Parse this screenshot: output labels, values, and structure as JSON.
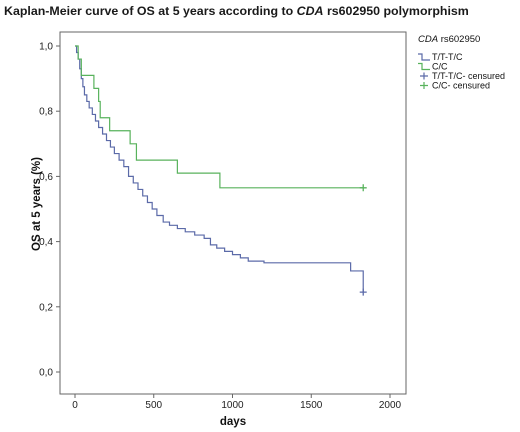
{
  "chart_data": {
    "type": "line",
    "title_prefix": "Kaplan-Meier curve of OS at 5 years according to ",
    "title_gene": "CDA",
    "title_suffix": " rs602950 polymorphism",
    "xlabel": "days",
    "ylabel": "OS at 5 years (%)",
    "xlim": [
      0,
      2000
    ],
    "ylim": [
      0,
      1
    ],
    "x_ticks": [
      "0",
      "500",
      "1000",
      "1500",
      "2000"
    ],
    "y_ticks": [
      "0,0",
      "0,2",
      "0,4",
      "0,6",
      "0,8",
      "1,0"
    ],
    "legend_title_gene": "CDA",
    "legend_title_rest": " rs602950",
    "legend_position": "right",
    "colors": {
      "TT_TC": "#5b6aa8",
      "CC": "#58b25c"
    },
    "series": [
      {
        "name": "T/T-T/C",
        "color": "#5b6aa8",
        "step_points": [
          [
            0,
            1.0
          ],
          [
            10,
            0.98
          ],
          [
            20,
            0.96
          ],
          [
            30,
            0.93
          ],
          [
            40,
            0.9
          ],
          [
            50,
            0.875
          ],
          [
            60,
            0.85
          ],
          [
            75,
            0.83
          ],
          [
            90,
            0.81
          ],
          [
            110,
            0.79
          ],
          [
            130,
            0.77
          ],
          [
            150,
            0.75
          ],
          [
            175,
            0.73
          ],
          [
            200,
            0.71
          ],
          [
            225,
            0.69
          ],
          [
            250,
            0.67
          ],
          [
            280,
            0.65
          ],
          [
            310,
            0.63
          ],
          [
            340,
            0.6
          ],
          [
            370,
            0.58
          ],
          [
            400,
            0.56
          ],
          [
            430,
            0.54
          ],
          [
            460,
            0.52
          ],
          [
            490,
            0.5
          ],
          [
            520,
            0.48
          ],
          [
            560,
            0.46
          ],
          [
            600,
            0.45
          ],
          [
            650,
            0.44
          ],
          [
            700,
            0.43
          ],
          [
            760,
            0.42
          ],
          [
            820,
            0.41
          ],
          [
            860,
            0.39
          ],
          [
            900,
            0.38
          ],
          [
            950,
            0.37
          ],
          [
            1000,
            0.36
          ],
          [
            1050,
            0.35
          ],
          [
            1100,
            0.34
          ],
          [
            1200,
            0.335
          ],
          [
            1750,
            0.31
          ],
          [
            1830,
            0.31
          ],
          [
            1830,
            0.245
          ]
        ],
        "censor_points": [
          [
            1830,
            0.245
          ]
        ]
      },
      {
        "name": "C/C",
        "color": "#58b25c",
        "step_points": [
          [
            0,
            1.0
          ],
          [
            20,
            0.96
          ],
          [
            40,
            0.91
          ],
          [
            120,
            0.87
          ],
          [
            150,
            0.83
          ],
          [
            160,
            0.78
          ],
          [
            220,
            0.74
          ],
          [
            350,
            0.7
          ],
          [
            390,
            0.65
          ],
          [
            650,
            0.61
          ],
          [
            690,
            0.61
          ],
          [
            920,
            0.565
          ],
          [
            1830,
            0.565
          ]
        ],
        "censor_points": [
          [
            1830,
            0.565
          ]
        ]
      }
    ],
    "legend": [
      "T/T-T/C",
      "C/C",
      "T/T-T/C- censured",
      "C/C- censured"
    ]
  }
}
